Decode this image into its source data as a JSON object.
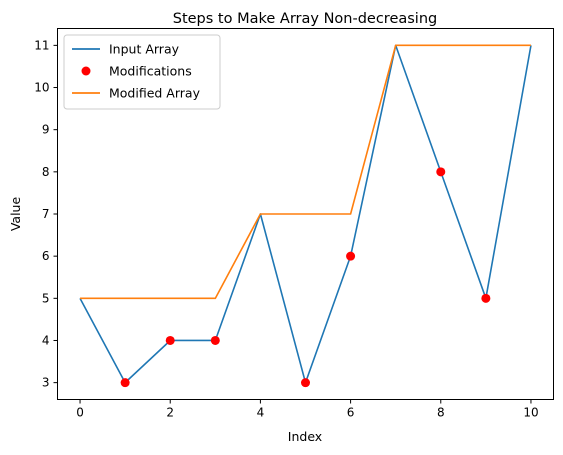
{
  "chart_data": {
    "type": "line",
    "title": "Steps to Make Array Non-decreasing",
    "xlabel": "Index",
    "ylabel": "Value",
    "xlim": [
      -0.5,
      10.5
    ],
    "ylim": [
      2.6,
      11.4
    ],
    "xticks": [
      0,
      2,
      4,
      6,
      8,
      10
    ],
    "yticks": [
      3,
      4,
      5,
      6,
      7,
      8,
      9,
      10,
      11
    ],
    "grid": false,
    "legend": "top-left",
    "series": [
      {
        "name": "Input Array",
        "kind": "line",
        "color": "#1f77b4",
        "x": [
          0,
          1,
          2,
          3,
          4,
          5,
          6,
          7,
          8,
          9,
          10
        ],
        "y": [
          5,
          3,
          4,
          4,
          7,
          3,
          6,
          11,
          8,
          5,
          11
        ]
      },
      {
        "name": "Modifications",
        "kind": "scatter",
        "color": "#ff0000",
        "x": [
          1,
          2,
          3,
          5,
          6,
          8,
          9
        ],
        "y": [
          3,
          4,
          4,
          3,
          6,
          8,
          5
        ]
      },
      {
        "name": "Modified Array",
        "kind": "line",
        "color": "#ff7f0e",
        "x": [
          0,
          1,
          2,
          3,
          4,
          5,
          6,
          7,
          8,
          9,
          10
        ],
        "y": [
          5,
          5,
          5,
          5,
          7,
          7,
          7,
          11,
          11,
          11,
          11
        ]
      }
    ]
  }
}
